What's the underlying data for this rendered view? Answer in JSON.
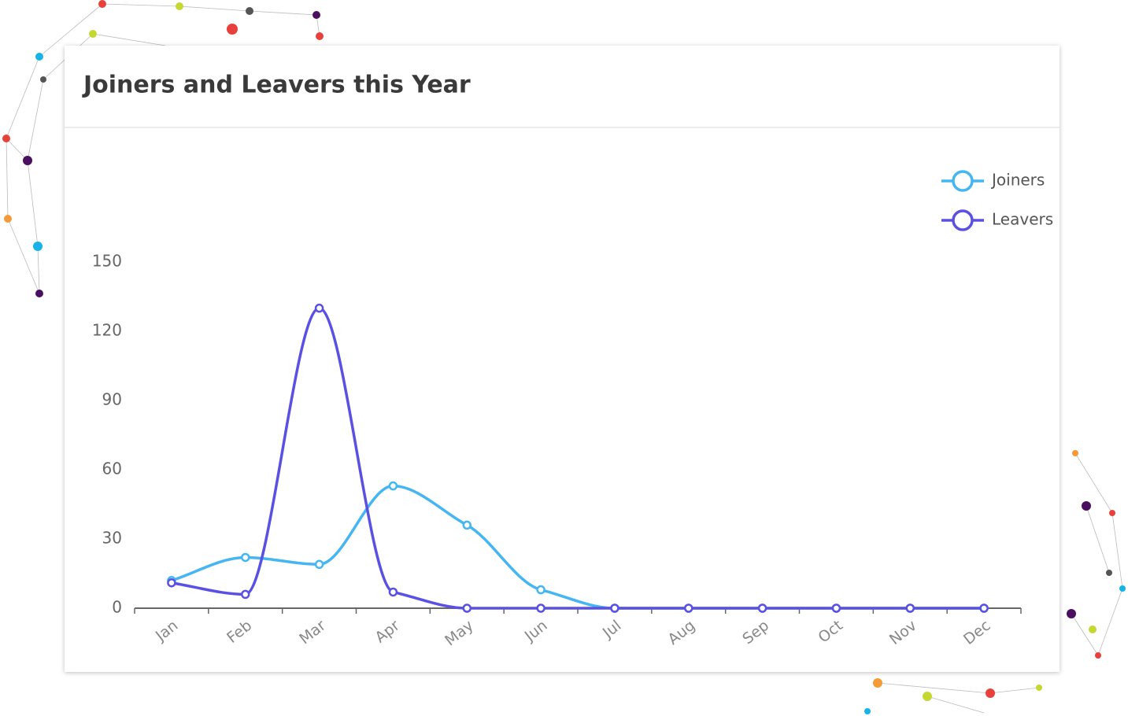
{
  "chart_data": {
    "type": "line",
    "title": "Joiners and Leavers this Year",
    "categories": [
      "Jan",
      "Feb",
      "Mar",
      "Apr",
      "May",
      "Jun",
      "Jul",
      "Aug",
      "Sep",
      "Oct",
      "Nov",
      "Dec"
    ],
    "series": [
      {
        "name": "Joiners",
        "color": "#45b6f2",
        "values": [
          12,
          22,
          19,
          53,
          36,
          8,
          0,
          0,
          0,
          0,
          0,
          0
        ]
      },
      {
        "name": "Leavers",
        "color": "#5a50e2",
        "values": [
          11,
          6,
          130,
          7,
          0,
          0,
          0,
          0,
          0,
          0,
          0,
          0
        ]
      }
    ],
    "ylim": [
      0,
      150
    ],
    "yticks": [
      0,
      30,
      60,
      90,
      120,
      150
    ],
    "grid": false,
    "legend": "top-right",
    "smooth": true
  }
}
